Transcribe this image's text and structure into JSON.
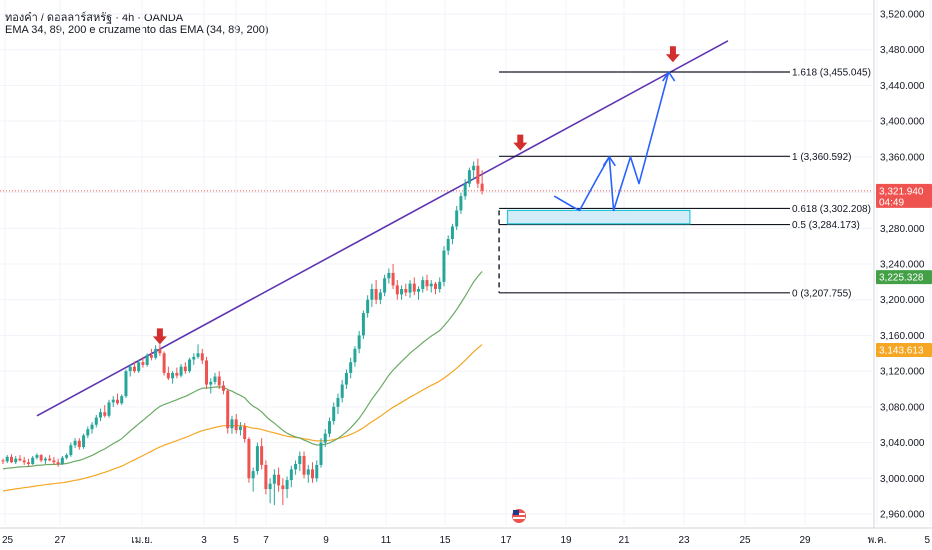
{
  "header": {
    "symbol_line": "ทองคำ / ดอลลาร์สหรัฐ · 4h · OANDA",
    "indicator_line": "EMA 34, 89, 200 e cruzamento das EMA (34, 89, 200)"
  },
  "colors": {
    "up": "#26a69a",
    "down": "#ef5350",
    "ema34": "#6aaa64",
    "ema89": "#f5a623",
    "trendline": "#5e35b1",
    "projection": "#2962ff",
    "zone_fill": "#d4ecf7",
    "zone_border": "#26c6da",
    "marker": "#d32f2f",
    "price_tag": "#ef5350",
    "ema34_tag": "#43a047",
    "ema89_tag": "#f5a623"
  },
  "chart_data": {
    "type": "candlestick",
    "y_axis": {
      "ticks": [
        "3,520.000",
        "3,480.000",
        "3,440.000",
        "3,400.000",
        "3,360.000",
        "3,320.000",
        "3,280.000",
        "3,240.000",
        "3,200.000",
        "3,160.000",
        "3,120.000",
        "3,080.000",
        "3,040.000",
        "3,000.000",
        "2,960.000"
      ],
      "range": [
        2950,
        3530
      ]
    },
    "x_axis": {
      "ticks": [
        "25",
        "27",
        "เม.ย.",
        "3",
        "5",
        "7",
        "9",
        "11",
        "15",
        "17",
        "19",
        "21",
        "23",
        "25",
        "29",
        "พ.ค.",
        "5"
      ]
    },
    "current_price": {
      "value": 3321.94,
      "label": "3,321.940",
      "timer": "04:49"
    },
    "ema34_value": {
      "value": 3225.328,
      "label": "3,225.328"
    },
    "ema89_value": {
      "value": 3143.613,
      "label": "3,143.613"
    },
    "fib_levels": [
      {
        "ratio": "1.618",
        "value": 3455.045,
        "label": "1.618 (3,455.045)"
      },
      {
        "ratio": "1",
        "value": 3360.592,
        "label": "1 (3,360.592)"
      },
      {
        "ratio": "0.618",
        "value": 3302.208,
        "label": "0.618 (3,302.208)"
      },
      {
        "ratio": "0.5",
        "value": 3284.173,
        "label": "0.5 (3,284.173)"
      },
      {
        "ratio": "0",
        "value": 3207.755,
        "label": "0 (3,207.755)"
      }
    ],
    "trendline": {
      "from": {
        "bar": 8,
        "price": 3070
      },
      "to": {
        "bar": 171,
        "price": 3490
      }
    },
    "zone": {
      "bar_start": 119,
      "bar_end": 162,
      "top": 3300,
      "bottom": 3285
    },
    "markers": [
      {
        "bar": 37,
        "price": 3150
      },
      {
        "bar": 122,
        "price": 3367
      },
      {
        "bar": 158,
        "price": 3466
      }
    ],
    "projection": [
      {
        "bar": 130,
        "price": 3316
      },
      {
        "bar": 134,
        "price": 3305
      },
      {
        "bar": 136,
        "price": 3300
      },
      {
        "bar": 140,
        "price": 3335
      },
      {
        "bar": 143,
        "price": 3360
      },
      {
        "bar": 144,
        "price": 3300
      },
      {
        "bar": 148,
        "price": 3360
      },
      {
        "bar": 150,
        "price": 3330
      },
      {
        "bar": 157,
        "price": 3455
      }
    ],
    "candles": [
      [
        3020,
        3022,
        3016,
        3019
      ],
      [
        3019,
        3026,
        3017,
        3024
      ],
      [
        3024,
        3027,
        3017,
        3018
      ],
      [
        3018,
        3025,
        3016,
        3022
      ],
      [
        3022,
        3026,
        3019,
        3020
      ],
      [
        3020,
        3024,
        3015,
        3018
      ],
      [
        3018,
        3022,
        3013,
        3016
      ],
      [
        3016,
        3025,
        3015,
        3023
      ],
      [
        3023,
        3028,
        3021,
        3026
      ],
      [
        3026,
        3027,
        3018,
        3020
      ],
      [
        3020,
        3024,
        3016,
        3022
      ],
      [
        3022,
        3026,
        3019,
        3020
      ],
      [
        3020,
        3024,
        3015,
        3018
      ],
      [
        3018,
        3022,
        3013,
        3016
      ],
      [
        3016,
        3025,
        3015,
        3023
      ],
      [
        3023,
        3028,
        3021,
        3026
      ],
      [
        3026,
        3040,
        3024,
        3037
      ],
      [
        3037,
        3045,
        3034,
        3042
      ],
      [
        3042,
        3045,
        3032,
        3035
      ],
      [
        3035,
        3050,
        3033,
        3048
      ],
      [
        3048,
        3058,
        3045,
        3055
      ],
      [
        3055,
        3063,
        3050,
        3060
      ],
      [
        3060,
        3071,
        3057,
        3068
      ],
      [
        3068,
        3078,
        3064,
        3074
      ],
      [
        3074,
        3082,
        3068,
        3070
      ],
      [
        3070,
        3088,
        3068,
        3085
      ],
      [
        3085,
        3092,
        3080,
        3088
      ],
      [
        3088,
        3095,
        3082,
        3084
      ],
      [
        3084,
        3094,
        3082,
        3092
      ],
      [
        3092,
        3122,
        3090,
        3120
      ],
      [
        3120,
        3128,
        3114,
        3125
      ],
      [
        3125,
        3131,
        3118,
        3120
      ],
      [
        3120,
        3133,
        3118,
        3130
      ],
      [
        3130,
        3136,
        3124,
        3127
      ],
      [
        3127,
        3140,
        3125,
        3138
      ],
      [
        3138,
        3145,
        3132,
        3135
      ],
      [
        3135,
        3149,
        3133,
        3145
      ],
      [
        3145,
        3150,
        3137,
        3140
      ],
      [
        3140,
        3142,
        3115,
        3118
      ],
      [
        3118,
        3125,
        3110,
        3112
      ],
      [
        3112,
        3120,
        3106,
        3118
      ],
      [
        3118,
        3124,
        3112,
        3115
      ],
      [
        3115,
        3128,
        3113,
        3125
      ],
      [
        3125,
        3130,
        3117,
        3120
      ],
      [
        3120,
        3135,
        3118,
        3133
      ],
      [
        3133,
        3140,
        3127,
        3136
      ],
      [
        3136,
        3150,
        3134,
        3140
      ],
      [
        3140,
        3145,
        3128,
        3132
      ],
      [
        3132,
        3136,
        3100,
        3105
      ],
      [
        3105,
        3112,
        3095,
        3108
      ],
      [
        3108,
        3118,
        3105,
        3114
      ],
      [
        3114,
        3120,
        3100,
        3104
      ],
      [
        3104,
        3109,
        3094,
        3098
      ],
      [
        3098,
        3100,
        3050,
        3056
      ],
      [
        3056,
        3070,
        3050,
        3066
      ],
      [
        3066,
        3072,
        3050,
        3054
      ],
      [
        3054,
        3063,
        3048,
        3058
      ],
      [
        3058,
        3062,
        3040,
        3044
      ],
      [
        3044,
        3046,
        2995,
        3000
      ],
      [
        3000,
        3012,
        2985,
        3008
      ],
      [
        3008,
        3040,
        3004,
        3036
      ],
      [
        3036,
        3045,
        3010,
        3015
      ],
      [
        3015,
        3020,
        2982,
        2988
      ],
      [
        2988,
        3000,
        2972,
        2994
      ],
      [
        2994,
        3010,
        2970,
        3004
      ],
      [
        3004,
        3012,
        2985,
        2992
      ],
      [
        2992,
        3000,
        2970,
        2988
      ],
      [
        2988,
        3002,
        2978,
        2998
      ],
      [
        2998,
        3014,
        2990,
        3010
      ],
      [
        3010,
        3020,
        3004,
        3016
      ],
      [
        3016,
        3030,
        3008,
        3025
      ],
      [
        3025,
        3030,
        3000,
        3004
      ],
      [
        3004,
        3015,
        2995,
        3010
      ],
      [
        3010,
        3018,
        2995,
        3000
      ],
      [
        3000,
        3020,
        2996,
        3015
      ],
      [
        3015,
        3045,
        3012,
        3040
      ],
      [
        3040,
        3055,
        3035,
        3050
      ],
      [
        3050,
        3068,
        3046,
        3064
      ],
      [
        3064,
        3085,
        3060,
        3080
      ],
      [
        3080,
        3095,
        3072,
        3090
      ],
      [
        3090,
        3110,
        3085,
        3105
      ],
      [
        3105,
        3122,
        3100,
        3118
      ],
      [
        3118,
        3135,
        3112,
        3130
      ],
      [
        3130,
        3148,
        3125,
        3145
      ],
      [
        3145,
        3165,
        3140,
        3160
      ],
      [
        3160,
        3188,
        3156,
        3185
      ],
      [
        3185,
        3205,
        3180,
        3200
      ],
      [
        3200,
        3218,
        3192,
        3212
      ],
      [
        3212,
        3222,
        3195,
        3200
      ],
      [
        3200,
        3212,
        3195,
        3208
      ],
      [
        3208,
        3228,
        3204,
        3224
      ],
      [
        3224,
        3235,
        3218,
        3230
      ],
      [
        3230,
        3240,
        3212,
        3216
      ],
      [
        3216,
        3222,
        3200,
        3206
      ],
      [
        3206,
        3216,
        3200,
        3212
      ],
      [
        3212,
        3218,
        3204,
        3208
      ],
      [
        3208,
        3222,
        3202,
        3218
      ],
      [
        3218,
        3225,
        3205,
        3209
      ],
      [
        3209,
        3215,
        3200,
        3212
      ],
      [
        3212,
        3226,
        3208,
        3222
      ],
      [
        3222,
        3228,
        3210,
        3215
      ],
      [
        3215,
        3222,
        3208,
        3218
      ],
      [
        3218,
        3220,
        3206,
        3212
      ],
      [
        3212,
        3225,
        3208,
        3220
      ],
      [
        3220,
        3260,
        3215,
        3255
      ],
      [
        3255,
        3272,
        3250,
        3268
      ],
      [
        3268,
        3285,
        3262,
        3282
      ],
      [
        3282,
        3305,
        3278,
        3300
      ],
      [
        3300,
        3320,
        3296,
        3316
      ],
      [
        3316,
        3335,
        3312,
        3330
      ],
      [
        3330,
        3348,
        3326,
        3345
      ],
      [
        3345,
        3355,
        3335,
        3350
      ],
      [
        3350,
        3358,
        3325,
        3330
      ],
      [
        3330,
        3345,
        3318,
        3322
      ]
    ]
  }
}
